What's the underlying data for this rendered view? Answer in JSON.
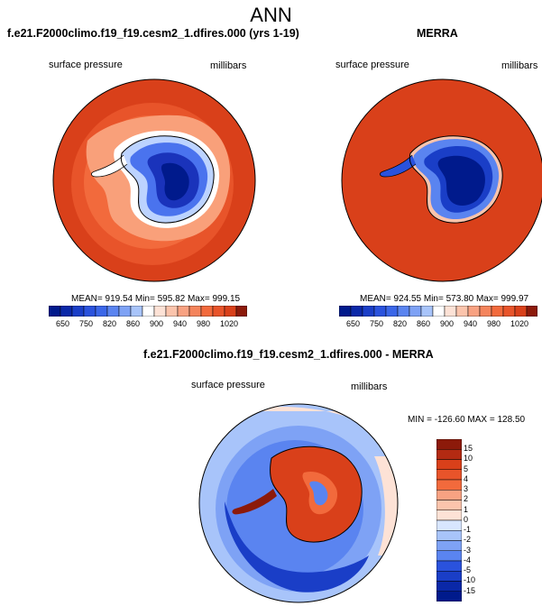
{
  "figure": {
    "title": "ANN"
  },
  "colors": {
    "high_red": "#d9401a",
    "orange": "#f26a3c",
    "deep_blue": "#001a8c",
    "mid_blue": "#2244dd",
    "light_blue": "#a8c8ff"
  },
  "panels": [
    {
      "title": "f.e21.F2000climo.f19_f19.cesm2_1.dfires.000 (yrs 1-19)",
      "variable": "surface pressure",
      "units": "millibars",
      "stats": "MEAN= 919.54  Min= 595.82  Max= 999.15",
      "colorbar_labels": [
        "650",
        "750",
        "820",
        "860",
        "900",
        "940",
        "980",
        "1020"
      ]
    },
    {
      "title": "MERRA",
      "variable": "surface pressure",
      "units": "millibars",
      "stats": "MEAN= 924.55  Min= 573.80  Max= 999.97",
      "colorbar_labels": [
        "650",
        "750",
        "820",
        "860",
        "900",
        "940",
        "980",
        "1020"
      ]
    },
    {
      "title": "f.e21.F2000climo.f19_f19.cesm2_1.dfires.000 - MERRA",
      "variable": "surface pressure",
      "units": "millibars",
      "stats": "MIN = -126.60  MAX = 128.50",
      "colorbar_labels": [
        "15",
        "10",
        "5",
        "4",
        "3",
        "2",
        "1",
        "0",
        "-1",
        "-2",
        "-3",
        "-4",
        "-5",
        "-10",
        "-15"
      ]
    }
  ]
}
